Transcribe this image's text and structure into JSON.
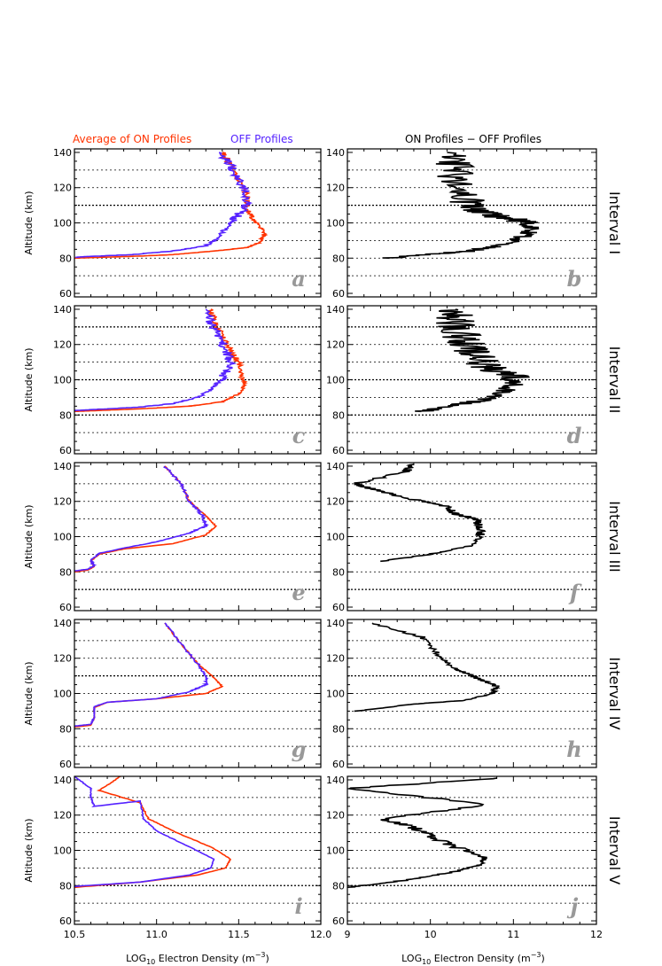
{
  "figure": {
    "legend_left": {
      "on_label": "Average of ON Profiles",
      "off_label": "OFF Profiles"
    },
    "right_title": "ON Profiles − OFF Profiles",
    "ylabel": "Altitude (km)",
    "xlabel_left": {
      "pre": "LOG",
      "sub": "10",
      "mid": " Electron Density (m",
      "sup": "−3",
      "post": ")"
    },
    "xlabel_right": {
      "pre": "LOG",
      "sub": "10",
      "mid": " Electron Density (m",
      "sup": "−3",
      "post": ")"
    },
    "colors": {
      "on": "#ff3300",
      "off": "#5522ff",
      "diff": "#000000",
      "letter": "#999999",
      "gridline": "#000000"
    }
  },
  "chart_data": [
    {
      "id": "a",
      "type": "line",
      "panel_letter": "a",
      "interval": "Interval I",
      "xlim": [
        10.5,
        12.0
      ],
      "ylim": [
        58,
        142
      ],
      "x_ticks": [
        10.5,
        11.0,
        11.5,
        12.0
      ],
      "y_ticks": [
        60,
        80,
        100,
        120,
        140
      ],
      "xlabel": "",
      "ylabel": "Altitude (km)",
      "gridlines_y": [
        70,
        80,
        90,
        100,
        110,
        120,
        130
      ],
      "gridlines_bold_y": [
        110
      ],
      "series": [
        {
          "name": "Average of ON Profiles",
          "color": "#ff3300",
          "noise": 0.02,
          "x": [
            10.5,
            10.6,
            10.85,
            11.1,
            11.35,
            11.55,
            11.63,
            11.66,
            11.62,
            11.58,
            11.55,
            11.55,
            11.5,
            11.45,
            11.4
          ],
          "y": [
            80,
            80.3,
            81,
            82,
            84,
            86,
            89,
            94,
            99,
            103,
            108,
            115,
            125,
            133,
            140
          ]
        },
        {
          "name": "OFF Profiles",
          "color": "#5522ff",
          "noise": 0.03,
          "x": [
            10.5,
            10.6,
            10.85,
            11.1,
            11.3,
            11.38,
            11.42,
            11.48,
            11.55,
            11.55,
            11.5,
            11.45,
            11.38
          ],
          "y": [
            80.5,
            81,
            82,
            84,
            87,
            92,
            97,
            103,
            110,
            117,
            125,
            133,
            140
          ]
        }
      ]
    },
    {
      "id": "b",
      "type": "line",
      "panel_letter": "b",
      "xlim": [
        9,
        12
      ],
      "ylim": [
        58,
        142
      ],
      "x_ticks": [
        9,
        10,
        11,
        12
      ],
      "y_ticks": [
        60,
        80,
        100,
        120,
        140
      ],
      "xlabel": "",
      "ylabel": "",
      "gridlines_y": [
        70,
        80,
        90,
        100,
        110,
        120,
        130
      ],
      "gridlines_bold_y": [
        110
      ],
      "series": [
        {
          "color": "#000000",
          "noise": 0.22,
          "x": [
            9.5,
            9.9,
            10.5,
            10.9,
            11.15,
            11.25,
            11.1,
            10.8,
            10.5,
            10.4,
            10.3,
            10.3,
            10.2
          ],
          "y": [
            80,
            82,
            84,
            88,
            93,
            97,
            101,
            104,
            108,
            115,
            123,
            132,
            140
          ]
        }
      ]
    },
    {
      "id": "c",
      "type": "line",
      "panel_letter": "c",
      "interval": "Interval II",
      "xlim": [
        10.5,
        12.0
      ],
      "ylim": [
        58,
        142
      ],
      "x_ticks": [
        10.5,
        11.0,
        11.5,
        12.0
      ],
      "y_ticks": [
        60,
        80,
        100,
        120,
        140
      ],
      "xlabel": "",
      "ylabel": "Altitude (km)",
      "gridlines_y": [
        70,
        80,
        90,
        100,
        110,
        120,
        130
      ],
      "gridlines_bold_y": [
        80,
        100,
        130
      ],
      "series": [
        {
          "name": "Average of ON Profiles",
          "color": "#ff3300",
          "noise": 0.02,
          "x": [
            10.5,
            10.6,
            10.9,
            11.2,
            11.4,
            11.5,
            11.54,
            11.52,
            11.5,
            11.45,
            11.4,
            11.36,
            11.33
          ],
          "y": [
            82,
            82.4,
            83.5,
            85,
            87.5,
            92,
            97,
            103,
            110,
            117,
            125,
            133,
            140
          ]
        },
        {
          "name": "OFF Profiles",
          "color": "#5522ff",
          "noise": 0.03,
          "x": [
            10.5,
            10.6,
            10.9,
            11.1,
            11.25,
            11.33,
            11.38,
            11.42,
            11.45,
            11.42,
            11.38,
            11.33,
            11.3
          ],
          "y": [
            82.5,
            83,
            84.5,
            86.5,
            90,
            94,
            99,
            104,
            110,
            117,
            125,
            133,
            140
          ]
        }
      ]
    },
    {
      "id": "d",
      "type": "line",
      "panel_letter": "d",
      "xlim": [
        9,
        12
      ],
      "ylim": [
        58,
        142
      ],
      "x_ticks": [
        9,
        10,
        11,
        12
      ],
      "y_ticks": [
        60,
        80,
        100,
        120,
        140
      ],
      "xlabel": "",
      "ylabel": "",
      "gridlines_y": [
        70,
        80,
        90,
        100,
        110,
        120,
        130
      ],
      "gridlines_bold_y": [
        80,
        100,
        130
      ],
      "series": [
        {
          "color": "#000000",
          "noise": 0.25,
          "x": [
            9.9,
            10.2,
            10.6,
            10.85,
            11.0,
            11.0,
            10.8,
            10.6,
            10.5,
            10.4,
            10.35,
            10.3,
            10.3
          ],
          "y": [
            82,
            85,
            88,
            92,
            97,
            101,
            105,
            110,
            116,
            122,
            128,
            134,
            140
          ]
        }
      ]
    },
    {
      "id": "e",
      "type": "line",
      "panel_letter": "e",
      "interval": "Interval III",
      "xlim": [
        10.5,
        12.0
      ],
      "ylim": [
        58,
        142
      ],
      "x_ticks": [
        10.5,
        11.0,
        11.5,
        12.0
      ],
      "y_ticks": [
        60,
        80,
        100,
        120,
        140
      ],
      "xlabel": "",
      "ylabel": "Altitude (km)",
      "gridlines_y": [
        70,
        80,
        90,
        100,
        110,
        120,
        130
      ],
      "gridlines_bold_y": [
        70
      ],
      "series": [
        {
          "name": "Average of ON Profiles",
          "color": "#ff3300",
          "noise": 0.005,
          "x": [
            10.5,
            10.58,
            10.62,
            10.6,
            10.65,
            10.8,
            11.1,
            11.3,
            11.36,
            11.3,
            11.2,
            11.15,
            11.05
          ],
          "y": [
            80,
            81,
            83,
            86,
            90,
            93,
            96,
            101,
            106,
            112,
            120,
            130,
            140
          ]
        },
        {
          "name": "OFF Profiles",
          "color": "#5522ff",
          "noise": 0.01,
          "x": [
            10.5,
            10.58,
            10.62,
            10.6,
            10.65,
            10.8,
            11.0,
            11.2,
            11.3,
            11.28,
            11.2,
            11.15,
            11.05
          ],
          "y": [
            80.5,
            81.5,
            83.5,
            86.5,
            90.5,
            93.5,
            97,
            102,
            106,
            112,
            120,
            130,
            140
          ]
        }
      ]
    },
    {
      "id": "f",
      "type": "line",
      "panel_letter": "f",
      "xlim": [
        9,
        12
      ],
      "ylim": [
        58,
        142
      ],
      "x_ticks": [
        9,
        10,
        11,
        12
      ],
      "y_ticks": [
        60,
        80,
        100,
        120,
        140
      ],
      "xlabel": "",
      "ylabel": "",
      "gridlines_y": [
        70,
        80,
        90,
        100,
        110,
        120,
        130
      ],
      "gridlines_bold_y": [
        70
      ],
      "series": [
        {
          "color": "#000000",
          "noise": 0.06,
          "x": [
            9.4,
            10.0,
            10.5,
            10.6,
            10.6,
            10.55,
            10.3,
            10.2,
            9.7,
            9.3,
            9.1,
            9.7,
            9.8
          ],
          "y": [
            86,
            90,
            95,
            100,
            105,
            110,
            113,
            117,
            122,
            127,
            130,
            137,
            141
          ]
        }
      ]
    },
    {
      "id": "g",
      "type": "line",
      "panel_letter": "g",
      "interval": "Interval IV",
      "xlim": [
        10.5,
        12.0
      ],
      "ylim": [
        58,
        142
      ],
      "x_ticks": [
        10.5,
        11.0,
        11.5,
        12.0
      ],
      "y_ticks": [
        60,
        80,
        100,
        120,
        140
      ],
      "xlabel": "",
      "ylabel": "Altitude (km)",
      "gridlines_y": [
        70,
        80,
        90,
        100,
        110,
        120,
        130
      ],
      "gridlines_bold_y": [
        110
      ],
      "series": [
        {
          "name": "Average of ON Profiles",
          "color": "#ff3300",
          "noise": 0.004,
          "x": [
            10.5,
            10.6,
            10.62,
            10.62,
            10.7,
            11.0,
            11.3,
            11.4,
            11.35,
            11.25,
            11.15,
            11.05
          ],
          "y": [
            81,
            82,
            86,
            92,
            95,
            97,
            100,
            104,
            109,
            117,
            128,
            140
          ]
        },
        {
          "name": "OFF Profiles",
          "color": "#5522ff",
          "noise": 0.008,
          "x": [
            10.5,
            10.6,
            10.62,
            10.62,
            10.7,
            11.0,
            11.2,
            11.3,
            11.3,
            11.25,
            11.15,
            11.05
          ],
          "y": [
            81.5,
            82.5,
            86.5,
            92.5,
            95,
            97,
            101,
            105,
            110,
            117,
            128,
            140
          ]
        }
      ]
    },
    {
      "id": "h",
      "type": "line",
      "panel_letter": "h",
      "xlim": [
        9,
        12
      ],
      "ylim": [
        58,
        142
      ],
      "x_ticks": [
        9,
        10,
        11,
        12
      ],
      "y_ticks": [
        60,
        80,
        100,
        120,
        140
      ],
      "xlabel": "",
      "ylabel": "",
      "gridlines_y": [
        70,
        80,
        90,
        100,
        110,
        120,
        130
      ],
      "gridlines_bold_y": [
        110
      ],
      "series": [
        {
          "color": "#000000",
          "noise": 0.04,
          "x": [
            9.1,
            9.8,
            10.4,
            10.75,
            10.8,
            10.65,
            10.5,
            10.25,
            10.1,
            9.9,
            9.3
          ],
          "y": [
            90,
            94,
            96,
            100,
            104,
            107,
            110,
            115,
            122,
            132,
            140
          ]
        }
      ]
    },
    {
      "id": "i",
      "type": "line",
      "panel_letter": "i",
      "interval": "Interval V",
      "xlim": [
        10.5,
        12.0
      ],
      "ylim": [
        58,
        142
      ],
      "x_ticks": [
        10.5,
        11.0,
        11.5,
        12.0
      ],
      "y_ticks": [
        60,
        80,
        100,
        120,
        140
      ],
      "xlabel": "LOG10 Electron Density (m−3)",
      "ylabel": "Altitude (km)",
      "gridlines_y": [
        70,
        80,
        90,
        100,
        110,
        120,
        130
      ],
      "gridlines_bold_y": [
        80
      ],
      "series": [
        {
          "name": "Average of ON Profiles",
          "color": "#ff3300",
          "noise": 0.004,
          "x": [
            10.5,
            10.9,
            11.25,
            11.42,
            11.45,
            11.35,
            11.1,
            10.95,
            10.9,
            10.65,
            10.78
          ],
          "y": [
            79,
            82,
            86,
            90,
            95,
            101,
            111,
            118,
            127,
            134,
            142
          ]
        },
        {
          "name": "OFF Profiles",
          "color": "#5522ff",
          "noise": 0.004,
          "x": [
            10.5,
            10.9,
            11.2,
            11.33,
            11.35,
            11.22,
            11.0,
            10.92,
            10.9,
            10.62,
            10.6,
            10.6,
            10.5
          ],
          "y": [
            79.5,
            82,
            86,
            90,
            95,
            101,
            111,
            118,
            128,
            125,
            130,
            135,
            142
          ]
        }
      ]
    },
    {
      "id": "j",
      "type": "line",
      "panel_letter": "j",
      "xlim": [
        9,
        12
      ],
      "ylim": [
        58,
        142
      ],
      "x_ticks": [
        9,
        10,
        11,
        12
      ],
      "y_ticks": [
        60,
        80,
        100,
        120,
        140
      ],
      "xlabel": "LOG10 Electron Density (m−3)",
      "ylabel": "",
      "gridlines_y": [
        70,
        80,
        90,
        100,
        110,
        120,
        130
      ],
      "gridlines_bold_y": [
        80
      ],
      "series": [
        {
          "color": "#000000",
          "noise": 0.08,
          "x": [
            9.0,
            9.7,
            10.3,
            10.62,
            10.65,
            10.3,
            10.0,
            9.8,
            9.4,
            10.7,
            9.0,
            10.8
          ],
          "y": [
            79,
            83,
            88,
            92,
            96,
            102,
            108,
            113,
            118,
            126,
            135,
            141
          ]
        }
      ]
    }
  ]
}
